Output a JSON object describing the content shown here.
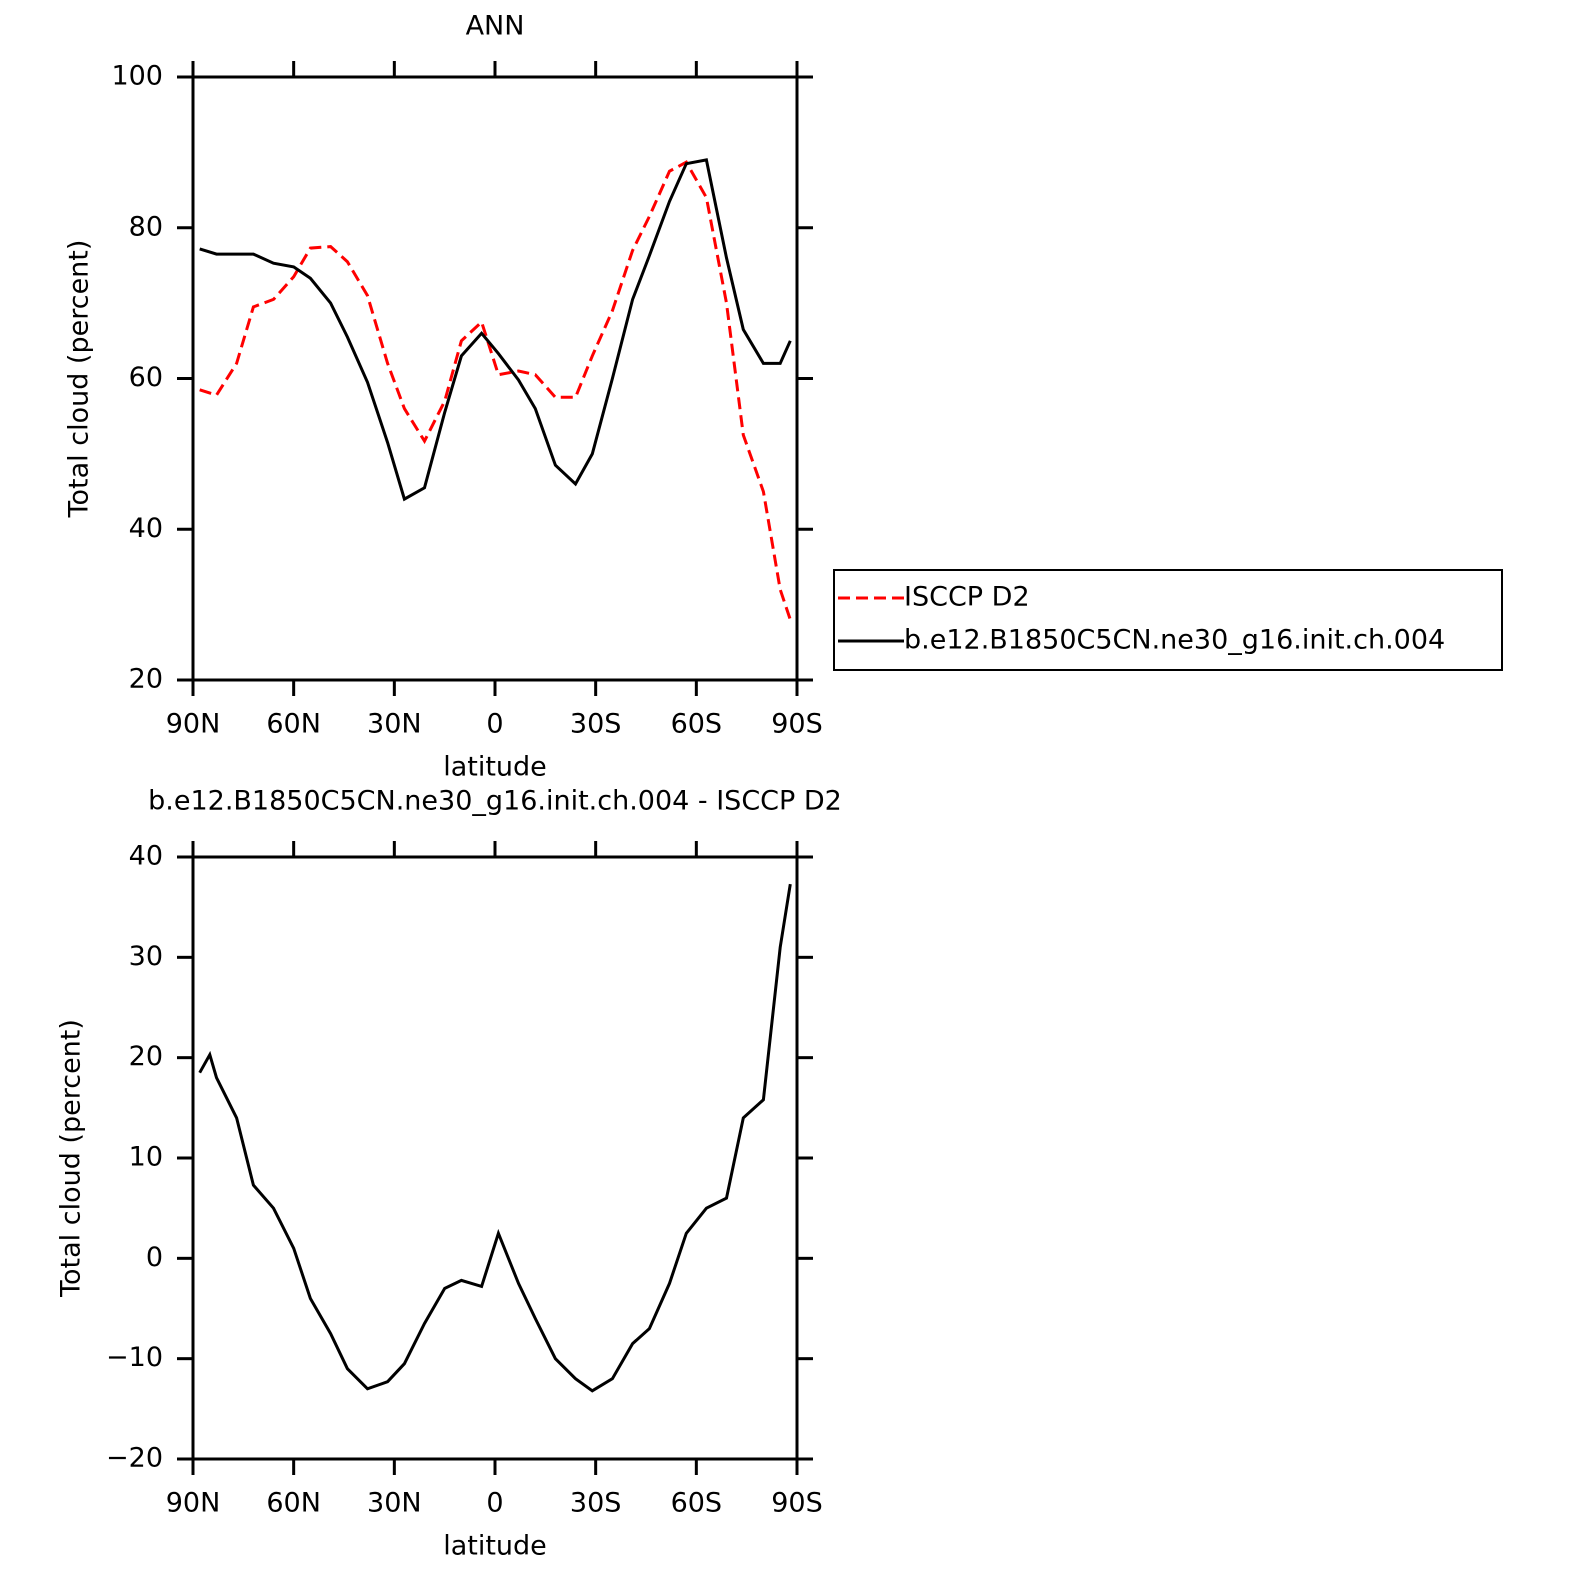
{
  "chart_data": [
    {
      "type": "line",
      "title": "ANN",
      "xlabel": "latitude",
      "ylabel": "Total cloud (percent)",
      "x": [
        88,
        83,
        77,
        72,
        66,
        60,
        55,
        49,
        44,
        38,
        32,
        27,
        21,
        15,
        10,
        4,
        -1,
        -7,
        -12,
        -18,
        -24,
        -29,
        -35,
        -41,
        -46,
        -52,
        -57,
        -63,
        -69,
        -74,
        -80,
        -85,
        -88
      ],
      "series": [
        {
          "name": "ISCCP D2",
          "color": "#ff0000",
          "dashed": true,
          "values": [
            58.5,
            57.8,
            62,
            69.5,
            70.5,
            73.5,
            77.3,
            77.5,
            75.5,
            71,
            62,
            56,
            51.7,
            57,
            65,
            67.5,
            60.5,
            61,
            60.5,
            57.5,
            57.5,
            63,
            69,
            77,
            81.5,
            87.5,
            88.7,
            84,
            70,
            52.5,
            45,
            32,
            28
          ]
        },
        {
          "name": "b.e12.B1850C5CN.ne30_g16.init.ch.004",
          "color": "#000000",
          "dashed": false,
          "values": [
            77.2,
            76.5,
            76.5,
            76.5,
            75.3,
            74.8,
            73.3,
            70,
            65.5,
            59.5,
            51.5,
            44,
            45.5,
            55.5,
            63,
            66,
            63.3,
            59.8,
            56,
            48.5,
            46,
            50,
            60,
            70.5,
            76.3,
            83.5,
            88.5,
            89,
            76,
            66.5,
            62,
            62,
            65
          ]
        }
      ],
      "xlim": [
        90,
        -90
      ],
      "xticks": [
        {
          "value": 90,
          "label": "90N"
        },
        {
          "value": 60,
          "label": "60N"
        },
        {
          "value": 30,
          "label": "30N"
        },
        0,
        {
          "value": -30,
          "label": "30S"
        },
        {
          "value": -60,
          "label": "60S"
        },
        {
          "value": -90,
          "label": "90S"
        }
      ],
      "ylim": [
        20,
        100
      ],
      "yticks": [
        20,
        40,
        60,
        80,
        100
      ],
      "legend": "right"
    },
    {
      "type": "line",
      "title": "b.e12.B1850C5CN.ne30_g16.init.ch.004 - ISCCP D2",
      "xlabel": "latitude",
      "ylabel": "Total cloud (percent)",
      "x": [
        88,
        85,
        83,
        77,
        72,
        66,
        60,
        55,
        49,
        44,
        38,
        32,
        27,
        21,
        15,
        10,
        4,
        -1,
        -7,
        -12,
        -18,
        -24,
        -29,
        -35,
        -41,
        -46,
        -52,
        -57,
        -63,
        -69,
        -74,
        -80,
        -85,
        -88
      ],
      "series": [
        {
          "color": "#000000",
          "dashed": false,
          "values": [
            18.5,
            20.3,
            18,
            14,
            7.3,
            5,
            1,
            -4,
            -7.5,
            -11,
            -13,
            -12.3,
            -10.5,
            -6.5,
            -3,
            -2.2,
            -2.8,
            2.5,
            -2.5,
            -6,
            -10,
            -12,
            -13.2,
            -12,
            -8.5,
            -7,
            -2.5,
            2.5,
            5,
            6,
            14,
            15.8,
            31,
            37.3
          ]
        }
      ],
      "xlim": [
        90,
        -90
      ],
      "xticks": [
        {
          "value": 90,
          "label": "90N"
        },
        {
          "value": 60,
          "label": "60N"
        },
        {
          "value": 30,
          "label": "30N"
        },
        0,
        {
          "value": -30,
          "label": "30S"
        },
        {
          "value": -60,
          "label": "60S"
        },
        {
          "value": -90,
          "label": "90S"
        }
      ],
      "ylim": [
        -20,
        40
      ],
      "yticks": [
        {
          "value": -20,
          "label": "−20"
        },
        {
          "value": -10,
          "label": "−10"
        },
        0,
        10,
        20,
        30,
        40
      ]
    }
  ]
}
